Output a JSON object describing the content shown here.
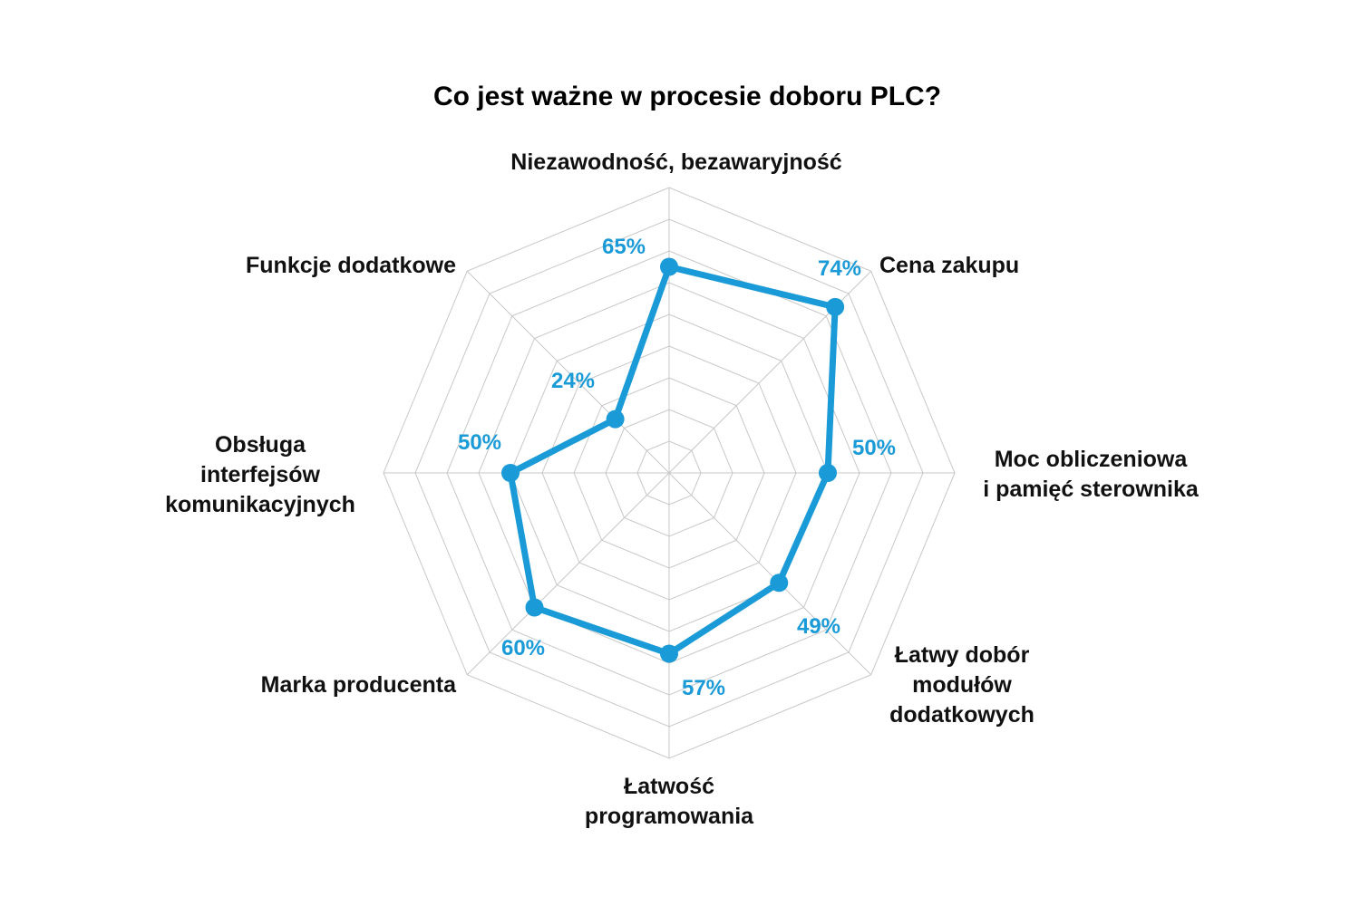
{
  "chart_data": {
    "type": "radar",
    "title": "Co jest ważne w procesie doboru PLC?",
    "categories": [
      [
        "Niezawodność, bezawaryjność"
      ],
      [
        "Cena zakupu"
      ],
      [
        "Moc obliczeniowa",
        "i pamięć sterownika"
      ],
      [
        "Łatwy dobór",
        "modułów",
        "dodatkowych"
      ],
      [
        "Łatwość",
        "programowania"
      ],
      [
        "Marka producenta"
      ],
      [
        "Obsługa",
        "interfejsów",
        "komunikacyjnych"
      ],
      [
        "Funkcje dodatkowe"
      ]
    ],
    "series": [
      {
        "values": [
          65,
          74,
          50,
          49,
          57,
          60,
          50,
          24
        ],
        "labels": [
          "65%",
          "74%",
          "50%",
          "49%",
          "57%",
          "60%",
          "50%",
          "24%"
        ]
      }
    ],
    "rlim": [
      0,
      90
    ],
    "grid_step": 10,
    "grid": true,
    "legend": "none",
    "colors": {
      "series": "#1a9ad6",
      "data_label": "#1a9ad6",
      "grid": "#c8c8c8"
    }
  }
}
